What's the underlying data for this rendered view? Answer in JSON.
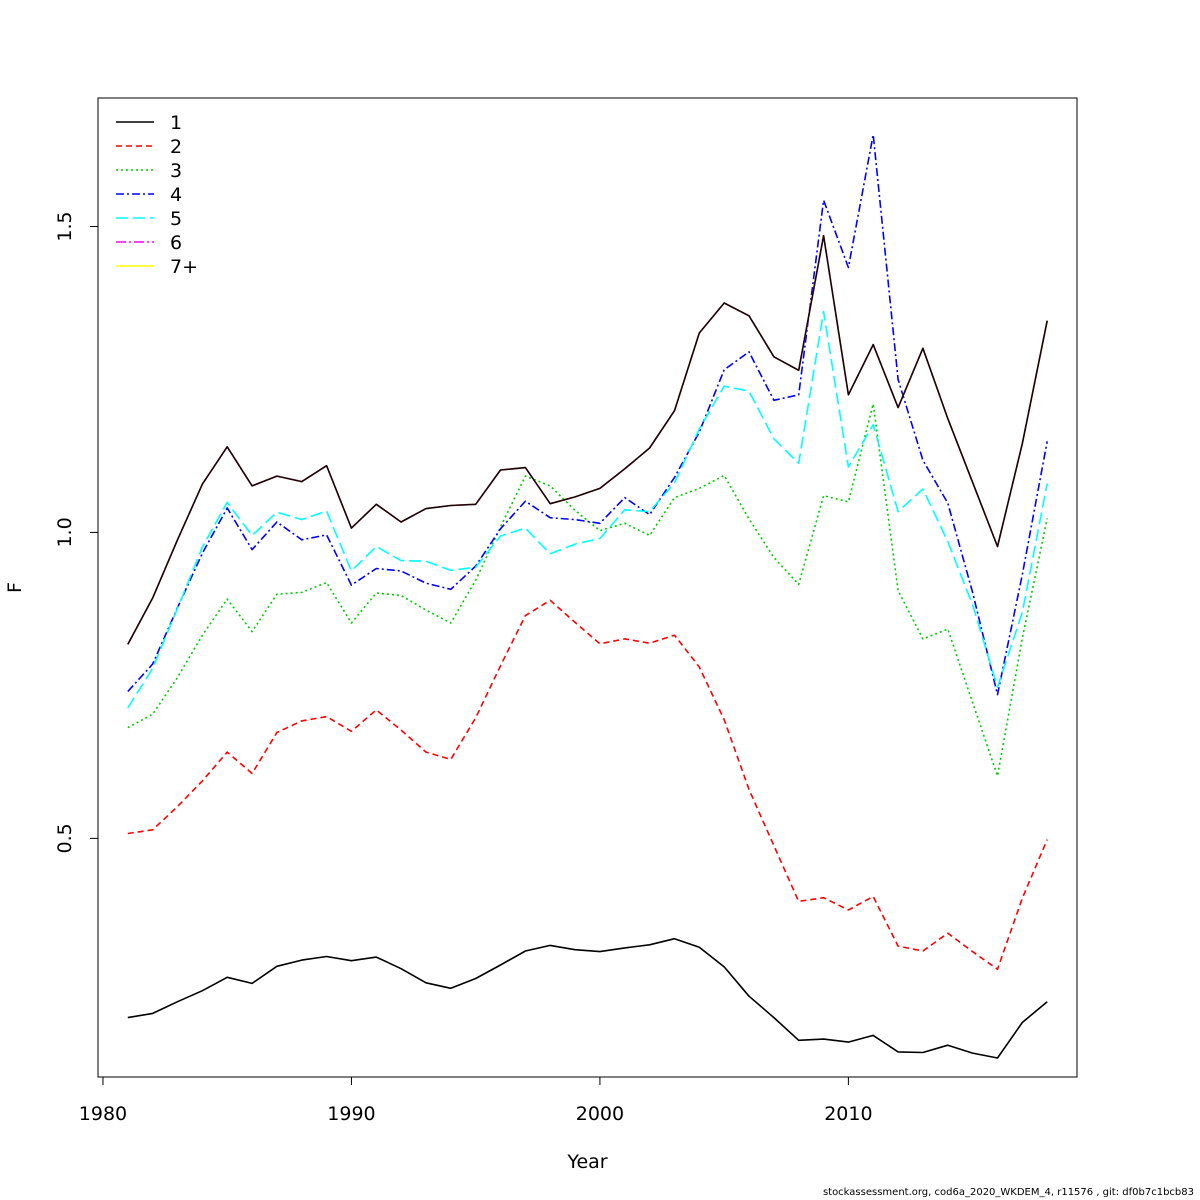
{
  "footer": "stockassessment.org, cod6a_2020_WKDEM_4, r11576 , git: df0b7c1bcb83",
  "chart_data": {
    "type": "line",
    "xlabel": "Year",
    "ylabel": "F",
    "xlim": [
      1979.8,
      2019.2
    ],
    "ylim": [
      0.11,
      1.71
    ],
    "x_ticks": [
      1980,
      1990,
      2000,
      2010
    ],
    "y_ticks": [
      0.5,
      1.0,
      1.5
    ],
    "y_tick_labels": [
      "0.5",
      "1.0",
      "1.5"
    ],
    "grid": false,
    "legend_position": "top-left",
    "x": [
      1981,
      1982,
      1983,
      1984,
      1985,
      1986,
      1987,
      1988,
      1989,
      1990,
      1991,
      1992,
      1993,
      1994,
      1995,
      1996,
      1997,
      1998,
      1999,
      2000,
      2001,
      2002,
      2003,
      2004,
      2005,
      2006,
      2007,
      2008,
      2009,
      2010,
      2011,
      2012,
      2013,
      2014,
      2015,
      2016,
      2017,
      2018
    ],
    "series": [
      {
        "name": "1",
        "color": "#000000",
        "dash": "",
        "values": [
          0.207,
          0.214,
          0.233,
          0.251,
          0.273,
          0.263,
          0.291,
          0.301,
          0.307,
          0.3,
          0.306,
          0.287,
          0.264,
          0.255,
          0.271,
          0.293,
          0.316,
          0.325,
          0.318,
          0.315,
          0.321,
          0.326,
          0.336,
          0.322,
          0.29,
          0.242,
          0.207,
          0.17,
          0.172,
          0.167,
          0.178,
          0.151,
          0.15,
          0.162,
          0.149,
          0.141,
          0.199,
          0.233
        ]
      },
      {
        "name": "2",
        "color": "#ff0000",
        "dash": "6,4",
        "values": [
          0.508,
          0.514,
          0.552,
          0.594,
          0.641,
          0.606,
          0.673,
          0.692,
          0.699,
          0.675,
          0.71,
          0.677,
          0.641,
          0.629,
          0.697,
          0.782,
          0.864,
          0.889,
          0.853,
          0.818,
          0.826,
          0.819,
          0.832,
          0.78,
          0.694,
          0.58,
          0.488,
          0.397,
          0.403,
          0.383,
          0.405,
          0.324,
          0.316,
          0.345,
          0.315,
          0.286,
          0.402,
          0.498
        ]
      },
      {
        "name": "3",
        "color": "#00cd00",
        "dash": "2,3",
        "values": [
          0.681,
          0.703,
          0.763,
          0.832,
          0.891,
          0.838,
          0.899,
          0.902,
          0.918,
          0.852,
          0.901,
          0.897,
          0.873,
          0.852,
          0.922,
          1.009,
          1.092,
          1.076,
          1.036,
          1.003,
          1.015,
          0.995,
          1.057,
          1.072,
          1.093,
          1.022,
          0.959,
          0.915,
          1.06,
          1.05,
          1.21,
          0.905,
          0.826,
          0.842,
          0.722,
          0.602,
          0.827,
          1.023
        ]
      },
      {
        "name": "4",
        "color": "#0000ff",
        "dash": "8,3,2,3",
        "values": [
          0.74,
          0.785,
          0.877,
          0.966,
          1.04,
          0.972,
          1.017,
          0.988,
          0.996,
          0.914,
          0.941,
          0.937,
          0.917,
          0.907,
          0.945,
          1.006,
          1.051,
          1.024,
          1.021,
          1.015,
          1.057,
          1.029,
          1.09,
          1.164,
          1.266,
          1.295,
          1.216,
          1.225,
          1.543,
          1.433,
          1.65,
          1.25,
          1.118,
          1.048,
          0.902,
          0.735,
          0.931,
          1.149
        ]
      },
      {
        "name": "5",
        "color": "#00ffff",
        "dash": "12,5",
        "values": [
          0.713,
          0.778,
          0.876,
          0.976,
          1.049,
          0.995,
          1.033,
          1.021,
          1.035,
          0.937,
          0.977,
          0.954,
          0.953,
          0.938,
          0.943,
          0.994,
          1.007,
          0.965,
          0.981,
          0.99,
          1.037,
          1.034,
          1.081,
          1.169,
          1.239,
          1.231,
          1.153,
          1.113,
          1.361,
          1.107,
          1.176,
          1.034,
          1.071,
          0.985,
          0.882,
          0.747,
          0.869,
          1.08
        ]
      },
      {
        "name": "6",
        "color": "#ff00ff",
        "dash": "10,3,2,3",
        "values": [
          0.817,
          0.893,
          0.988,
          1.079,
          1.14,
          1.076,
          1.092,
          1.083,
          1.109,
          1.007,
          1.046,
          1.017,
          1.039,
          1.044,
          1.046,
          1.102,
          1.106,
          1.047,
          1.058,
          1.072,
          1.104,
          1.138,
          1.199,
          1.326,
          1.375,
          1.354,
          1.287,
          1.265,
          1.485,
          1.225,
          1.307,
          1.204,
          1.301,
          1.186,
          1.082,
          0.977,
          1.145,
          1.346
        ]
      },
      {
        "name": "7+",
        "color": "#ffff00",
        "dash": "",
        "values": [
          0.817,
          0.893,
          0.988,
          1.079,
          1.14,
          1.076,
          1.092,
          1.083,
          1.109,
          1.007,
          1.046,
          1.017,
          1.039,
          1.044,
          1.046,
          1.102,
          1.106,
          1.047,
          1.058,
          1.072,
          1.104,
          1.138,
          1.199,
          1.326,
          1.375,
          1.354,
          1.287,
          1.265,
          1.485,
          1.225,
          1.307,
          1.204,
          1.301,
          1.186,
          1.082,
          0.977,
          1.145,
          1.346
        ]
      }
    ]
  }
}
